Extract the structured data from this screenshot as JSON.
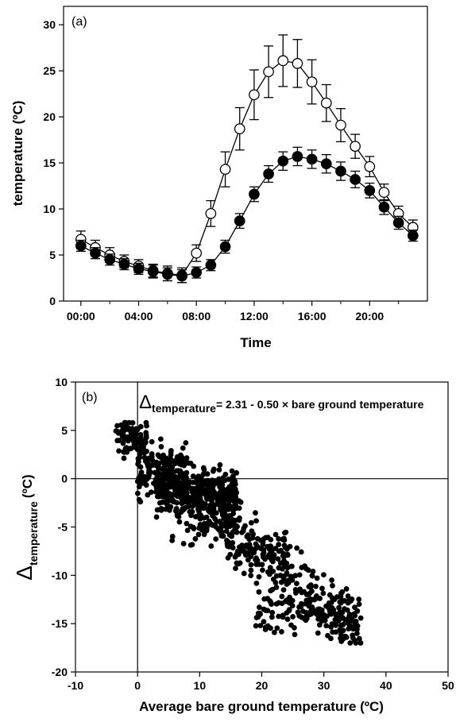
{
  "chart_data": [
    {
      "type": "line",
      "panel_label": "(a)",
      "xlabel": "Time",
      "ylabel": "temperature (ºC)",
      "x_tick_labels": [
        "00:00",
        "04:00",
        "08:00",
        "12:00",
        "16:00",
        "20:00"
      ],
      "y_ticks": [
        0,
        5,
        10,
        15,
        20,
        25,
        30
      ],
      "ylim": [
        0,
        32
      ],
      "xlim_hours": [
        -1.2,
        24
      ],
      "grid": false,
      "legend": "none",
      "x_hours": [
        0,
        1,
        2,
        3,
        4,
        5,
        6,
        7,
        8,
        9,
        10,
        11,
        12,
        13,
        14,
        15,
        16,
        17,
        18,
        19,
        20,
        21,
        22,
        23
      ],
      "series": [
        {
          "marker": "open-circle",
          "values": [
            6.7,
            5.8,
            5.0,
            4.3,
            3.8,
            3.3,
            3.0,
            2.8,
            5.2,
            9.5,
            14.3,
            18.7,
            22.4,
            24.9,
            26.1,
            25.8,
            23.8,
            21.5,
            19.1,
            16.8,
            14.6,
            11.8,
            9.5,
            8.0
          ],
          "errors": [
            0.9,
            0.8,
            0.8,
            0.7,
            0.7,
            0.7,
            0.8,
            0.8,
            0.9,
            1.4,
            1.9,
            2.3,
            2.7,
            2.8,
            2.8,
            2.6,
            2.4,
            2.0,
            1.8,
            1.3,
            1.1,
            0.9,
            0.8,
            0.8
          ]
        },
        {
          "marker": "filled-circle",
          "values": [
            6.0,
            5.2,
            4.5,
            4.0,
            3.5,
            3.2,
            2.9,
            2.7,
            3.1,
            3.9,
            5.9,
            8.7,
            11.6,
            13.8,
            15.2,
            15.7,
            15.4,
            14.9,
            14.1,
            13.2,
            12.0,
            10.2,
            8.5,
            7.1
          ],
          "errors": [
            0.6,
            0.6,
            0.6,
            0.6,
            0.6,
            0.7,
            0.7,
            0.7,
            0.6,
            0.6,
            0.7,
            0.8,
            0.8,
            0.9,
            1.0,
            1.0,
            1.0,
            1.0,
            1.0,
            0.9,
            0.8,
            0.8,
            0.7,
            0.6
          ]
        }
      ]
    },
    {
      "type": "scatter",
      "panel_label": "(b)",
      "xlabel": "Average bare ground temperature (ºC)",
      "ylabel": "Δtemperature (ºC)",
      "ylabel_main": "Δ",
      "ylabel_sub": "temperature",
      "ylabel_unit": "(ºC)",
      "annotation": {
        "delta": "Δ",
        "subscript": "temperature",
        "equation": "= 2.31 - 0.50 × bare ground temperature"
      },
      "x_ticks": [
        -10,
        0,
        10,
        20,
        30,
        40,
        50
      ],
      "y_ticks": [
        -20,
        -15,
        -10,
        -5,
        0,
        5,
        10
      ],
      "xlim": [
        -10,
        50
      ],
      "ylim": [
        -20,
        10
      ],
      "reference_lines": {
        "x": 0,
        "y": 0
      },
      "grid": false,
      "legend": "none",
      "point_cloud": {
        "n_points": 1100,
        "x_range": [
          -3.5,
          36
        ],
        "regression": {
          "intercept": 2.31,
          "slope": -0.5
        },
        "clusters": [
          {
            "x_range": [
              -3.5,
              1.5
            ],
            "y_center": 4.2,
            "y_spread": 0.9,
            "n": 90
          },
          {
            "x_range": [
              0,
              8
            ],
            "y_center": 0.8,
            "y_spread": 1.4,
            "n": 160
          },
          {
            "x_range": [
              3,
              16
            ],
            "y_center": -1.4,
            "y_spread": 1.2,
            "n": 330
          },
          {
            "x_range": [
              5,
              16
            ],
            "y_center": -4.2,
            "y_spread": 1.4,
            "n": 70
          },
          {
            "x_range": [
              10,
              36
            ],
            "y_center": "regression",
            "y_spread": 1.6,
            "n": 300
          },
          {
            "x_range": [
              14,
              24
            ],
            "y_center": -7.5,
            "y_spread": 1.3,
            "n": 40
          },
          {
            "x_range": [
              19,
              35
            ],
            "y_center": -13.8,
            "y_spread": 1.3,
            "n": 110
          }
        ]
      }
    }
  ]
}
